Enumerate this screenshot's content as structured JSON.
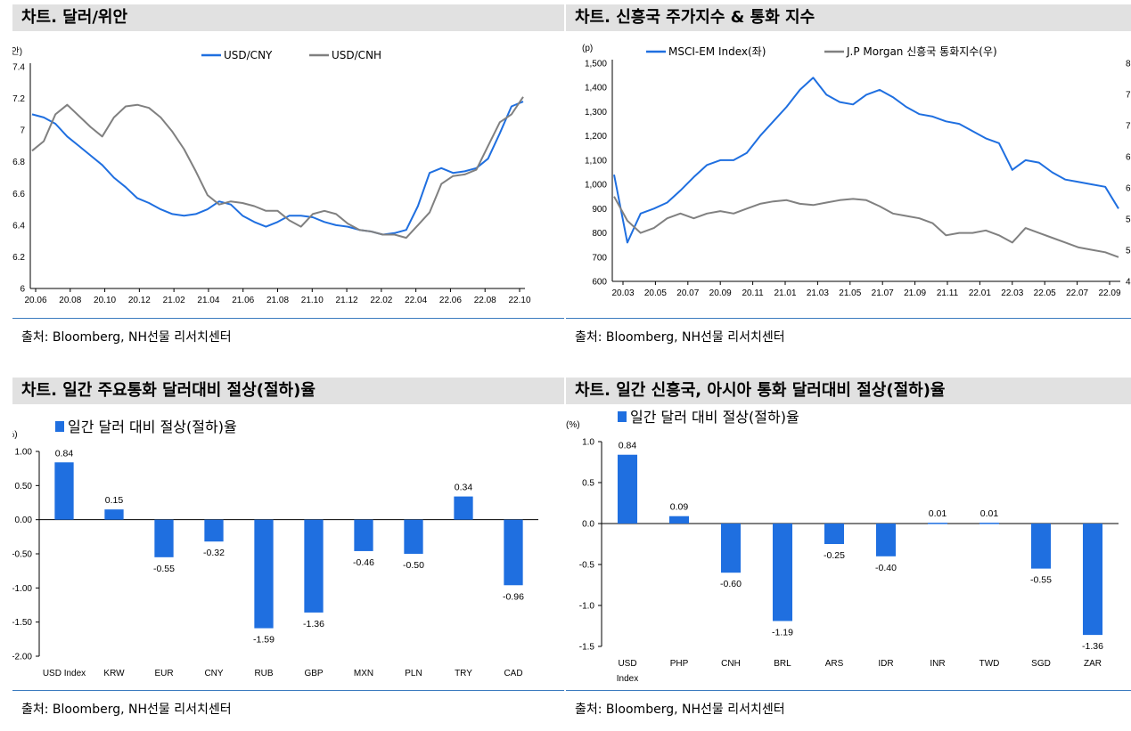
{
  "panels": {
    "p1": {
      "title": "차트. 달러/위안",
      "source": "출처: Bloomberg, NH선물 리서치센터"
    },
    "p2": {
      "title": "차트. 신흥국 주가지수 & 통화 지수",
      "source": "출처: Bloomberg, NH선물 리서치센터"
    },
    "p3": {
      "title": "차트. 일간 주요통화 달러대비 절상(절하)율",
      "source": "출처: Bloomberg, NH선물 리서치센터"
    },
    "p4": {
      "title": "차트. 일간 신흥국, 아시아 통화 달러대비 절상(절하)율",
      "source": "출처: Bloomberg, NH선물 리서치센터"
    }
  },
  "chart_data": [
    {
      "id": "usdcny",
      "type": "line",
      "title": "차트. 달러/위안",
      "unit_label": "(위안)",
      "ylim": [
        6.0,
        7.4
      ],
      "yticks": [
        6,
        6.2,
        6.4,
        6.6,
        6.8,
        7,
        7.2,
        7.4
      ],
      "ytick_labels": [
        "6",
        "6.2",
        "6.4",
        "6.6",
        "6.8",
        "7",
        "7.2",
        "7.4"
      ],
      "xticks": [
        "20.06",
        "20.08",
        "20.10",
        "20.12",
        "21.02",
        "21.04",
        "21.06",
        "21.08",
        "21.10",
        "21.12",
        "22.02",
        "22.04",
        "22.06",
        "22.08",
        "22.10"
      ],
      "legend_position": "top",
      "series": [
        {
          "name": "USD/CNY",
          "color": "#1f6fe0",
          "values": [
            7.1,
            7.08,
            7.04,
            6.96,
            6.9,
            6.84,
            6.78,
            6.7,
            6.64,
            6.57,
            6.54,
            6.5,
            6.47,
            6.46,
            6.47,
            6.5,
            6.55,
            6.53,
            6.46,
            6.42,
            6.39,
            6.42,
            6.46,
            6.46,
            6.45,
            6.42,
            6.4,
            6.39,
            6.37,
            6.36,
            6.34,
            6.35,
            6.37,
            6.52,
            6.73,
            6.76,
            6.73,
            6.74,
            6.76,
            6.82,
            6.98,
            7.15,
            7.18
          ]
        },
        {
          "name": "USD/CNH",
          "color": "#808080",
          "values": [
            6.87,
            6.93,
            7.1,
            7.16,
            7.09,
            7.02,
            6.96,
            7.08,
            7.15,
            7.16,
            7.14,
            7.08,
            6.99,
            6.88,
            6.74,
            6.59,
            6.53,
            6.55,
            6.54,
            6.52,
            6.49,
            6.49,
            6.43,
            6.39,
            6.47,
            6.49,
            6.47,
            6.41,
            6.37,
            6.36,
            6.34,
            6.34,
            6.32,
            6.4,
            6.48,
            6.66,
            6.71,
            6.72,
            6.75,
            6.9,
            7.05,
            7.1,
            7.21
          ]
        }
      ]
    },
    {
      "id": "emindex",
      "type": "line",
      "title": "차트. 신흥국 주가지수 & 통화 지수",
      "unit_label": "(p)",
      "ylim": [
        600,
        1500
      ],
      "yticks": [
        600,
        700,
        800,
        900,
        1000,
        1100,
        1200,
        1300,
        1400,
        1500
      ],
      "ytick_labels": [
        "600",
        "700",
        "800",
        "900",
        "1,000",
        "1,100",
        "1,200",
        "1,300",
        "1,400",
        "1,500"
      ],
      "y2_ticks": [
        "4",
        "5",
        "5",
        "6",
        "6",
        "7",
        "7",
        "8"
      ],
      "xticks": [
        "20.03",
        "20.05",
        "20.07",
        "20.09",
        "20.11",
        "21.01",
        "21.03",
        "21.05",
        "21.07",
        "21.09",
        "21.11",
        "22.01",
        "22.03",
        "22.05",
        "22.07",
        "22.09"
      ],
      "legend_position": "top",
      "series": [
        {
          "name": "MSCI-EM Index(좌)",
          "color": "#1f6fe0",
          "values": [
            1040,
            760,
            880,
            900,
            925,
            975,
            1030,
            1080,
            1100,
            1100,
            1130,
            1200,
            1260,
            1320,
            1390,
            1440,
            1370,
            1340,
            1330,
            1370,
            1390,
            1360,
            1320,
            1290,
            1280,
            1260,
            1250,
            1220,
            1190,
            1170,
            1060,
            1100,
            1090,
            1050,
            1020,
            1010,
            1000,
            990,
            900
          ]
        },
        {
          "name": "J.P Morgan 신흥국 통화지수(우)",
          "color": "#808080",
          "values": [
            950,
            850,
            800,
            820,
            860,
            880,
            860,
            880,
            890,
            880,
            900,
            920,
            930,
            935,
            920,
            915,
            925,
            935,
            940,
            935,
            910,
            880,
            870,
            860,
            840,
            790,
            800,
            800,
            810,
            790,
            760,
            820,
            800,
            780,
            760,
            740,
            730,
            720,
            700
          ]
        }
      ]
    },
    {
      "id": "majorfx",
      "type": "bar",
      "title": "차트. 일간 주요통화 달러대비 절상(절하)율",
      "unit_label": "(%)",
      "legend": "일간 달러 대비 절상(절하)율",
      "color": "#1f6fe0",
      "ylim": [
        -2.0,
        1.0
      ],
      "yticks": [
        -2.0,
        -1.5,
        -1.0,
        -0.5,
        0.0,
        0.5,
        1.0
      ],
      "ytick_labels": [
        "-2.00",
        "-1.50",
        "-1.00",
        "-0.50",
        "0.00",
        "0.50",
        "1.00"
      ],
      "categories": [
        "USD Index",
        "KRW",
        "EUR",
        "CNY",
        "RUB",
        "GBP",
        "MXN",
        "PLN",
        "TRY",
        "CAD"
      ],
      "values": [
        0.84,
        0.15,
        -0.55,
        -0.32,
        -1.59,
        -1.36,
        -0.46,
        -0.5,
        0.34,
        -0.96
      ],
      "value_labels": [
        "0.84",
        "0.15",
        "-0.55",
        "-0.32",
        "-1.59",
        "-1.36",
        "-0.46",
        "-0.50",
        "0.34",
        "-0.96"
      ]
    },
    {
      "id": "emfx",
      "type": "bar",
      "title": "차트. 일간 신흥국, 아시아 통화 달러대비 절상(절하)율",
      "unit_label": "(%)",
      "legend": "일간 달러 대비 절상(절하)율",
      "color": "#1f6fe0",
      "ylim": [
        -1.5,
        1.0
      ],
      "yticks": [
        -1.5,
        -1.0,
        -0.5,
        0.0,
        0.5,
        1.0
      ],
      "ytick_labels": [
        "-1.5",
        "-1.0",
        "-0.5",
        "0.0",
        "0.5",
        "1.0"
      ],
      "categories": [
        "USD\nIndex",
        "PHP",
        "CNH",
        "BRL",
        "ARS",
        "IDR",
        "INR",
        "TWD",
        "SGD",
        "ZAR"
      ],
      "values": [
        0.84,
        0.09,
        -0.6,
        -1.19,
        -0.25,
        -0.4,
        0.01,
        0.01,
        -0.55,
        -1.36
      ],
      "value_labels": [
        "0.84",
        "0.09",
        "-0.60",
        "-1.19",
        "-0.25",
        "-0.40",
        "0.01",
        "0.01",
        "-0.55",
        "-1.36"
      ]
    }
  ]
}
